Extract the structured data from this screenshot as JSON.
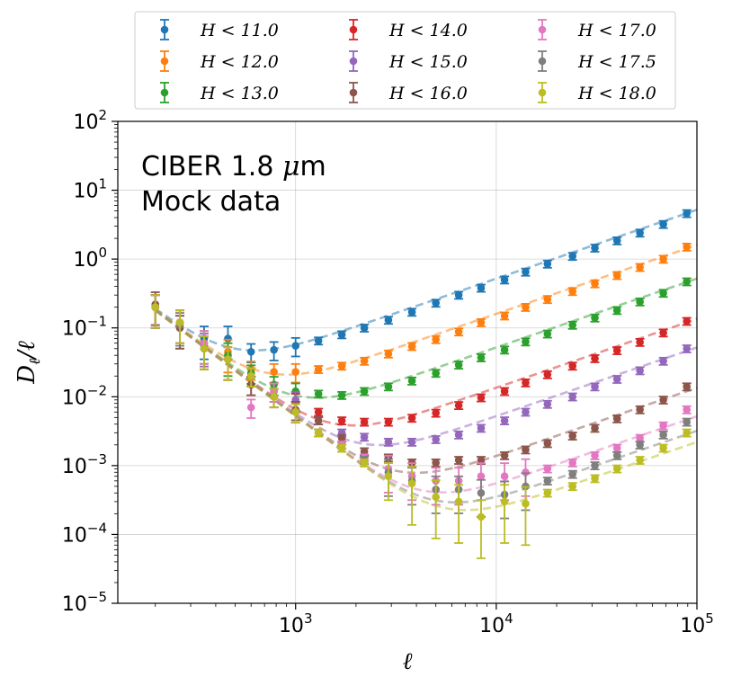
{
  "chart_data": {
    "type": "scatter",
    "title": "",
    "xlabel": "ℓ",
    "ylabel": "D_ℓ/ℓ",
    "xscale": "log",
    "yscale": "log",
    "xlim": [
      130,
      100000
    ],
    "ylim": [
      1e-05,
      100
    ],
    "grid": true,
    "x_ticks": [
      {
        "value": 1000,
        "base": "10",
        "exp": "3"
      },
      {
        "value": 10000,
        "base": "10",
        "exp": "4"
      },
      {
        "value": 100000,
        "base": "10",
        "exp": "5"
      }
    ],
    "y_ticks": [
      {
        "value": 1e-05,
        "base": "10",
        "exp": "−5"
      },
      {
        "value": 0.0001,
        "base": "10",
        "exp": "−4"
      },
      {
        "value": 0.001,
        "base": "10",
        "exp": "−3"
      },
      {
        "value": 0.01,
        "base": "10",
        "exp": "−2"
      },
      {
        "value": 0.1,
        "base": "10",
        "exp": "−1"
      },
      {
        "value": 1,
        "base": "10",
        "exp": "0"
      },
      {
        "value": 10,
        "base": "10",
        "exp": "1"
      },
      {
        "value": 100,
        "base": "10",
        "exp": "2"
      }
    ],
    "annotations": [
      "CIBER 1.8 μm",
      "Mock data"
    ],
    "legend_position": "top, outside",
    "x": [
      200,
      265,
      350,
      460,
      600,
      780,
      1000,
      1300,
      1700,
      2200,
      2900,
      3800,
      5000,
      6500,
      8400,
      11000,
      14000,
      18000,
      24000,
      31000,
      40000,
      52000,
      68000,
      89000
    ],
    "series": [
      {
        "name": "H < 11.0",
        "color": "#1f77b4",
        "white_noise": 5.2e-05,
        "clustering": 0.034,
        "slope": 1.0,
        "values": [
          0.2,
          0.12,
          0.07,
          0.07,
          0.045,
          0.048,
          0.055,
          0.065,
          0.08,
          0.1,
          0.13,
          0.17,
          0.23,
          0.3,
          0.38,
          0.5,
          0.65,
          0.85,
          1.1,
          1.45,
          1.85,
          2.4,
          3.2,
          4.6
        ]
      },
      {
        "name": "H < 12.0",
        "color": "#ff7f0e",
        "white_noise": 1.6e-05,
        "clustering": 0.024,
        "slope": 1.0,
        "values": [
          0.2,
          0.12,
          0.06,
          0.045,
          0.025,
          0.023,
          0.023,
          0.025,
          0.028,
          0.033,
          0.042,
          0.054,
          0.068,
          0.088,
          0.12,
          0.15,
          0.2,
          0.26,
          0.34,
          0.44,
          0.58,
          0.76,
          1.0,
          1.5
        ]
      },
      {
        "name": "H < 13.0",
        "color": "#2ca02c",
        "white_noise": 5.2e-06,
        "clustering": 0.024,
        "slope": 1.0,
        "values": [
          0.2,
          0.12,
          0.06,
          0.04,
          0.022,
          0.015,
          0.012,
          0.011,
          0.0105,
          0.012,
          0.014,
          0.017,
          0.022,
          0.029,
          0.037,
          0.048,
          0.063,
          0.082,
          0.11,
          0.14,
          0.18,
          0.24,
          0.32,
          0.47
        ]
      },
      {
        "name": "H < 14.0",
        "color": "#d62728",
        "white_noise": 1.35e-06,
        "clustering": 0.024,
        "slope": 1.0,
        "values": [
          0.2,
          0.1,
          0.05,
          0.035,
          0.015,
          0.01,
          0.0085,
          0.006,
          0.0045,
          0.0043,
          0.0043,
          0.0049,
          0.0058,
          0.0075,
          0.0097,
          0.012,
          0.016,
          0.021,
          0.028,
          0.036,
          0.047,
          0.062,
          0.085,
          0.125
        ]
      },
      {
        "name": "H < 15.0",
        "color": "#9467bd",
        "white_noise": 5.2e-07,
        "clustering": 0.024,
        "slope": 1.0,
        "values": [
          0.2,
          0.12,
          0.055,
          0.035,
          0.02,
          0.012,
          0.009,
          0.0045,
          0.003,
          0.0026,
          0.0022,
          0.0022,
          0.0024,
          0.0028,
          0.0035,
          0.0045,
          0.006,
          0.0078,
          0.01,
          0.014,
          0.018,
          0.024,
          0.033,
          0.05
        ]
      },
      {
        "name": "H < 16.0",
        "color": "#8c564b",
        "white_noise": 1.35e-07,
        "clustering": 0.024,
        "slope": 1.0,
        "values": [
          0.22,
          0.1,
          0.05,
          0.035,
          0.015,
          0.01,
          0.0065,
          0.0045,
          0.0025,
          0.0016,
          0.0013,
          0.0011,
          0.0011,
          0.0012,
          0.0012,
          0.0014,
          0.0017,
          0.0021,
          0.0027,
          0.0035,
          0.0048,
          0.0065,
          0.009,
          0.014
        ]
      },
      {
        "name": "H < 17.0",
        "color": "#e377c2",
        "white_noise": 5.2e-08,
        "clustering": 0.024,
        "slope": 1.0,
        "values": [
          0.2,
          0.12,
          0.06,
          0.035,
          0.007,
          0.012,
          0.006,
          0.003,
          0.002,
          0.0013,
          0.0009,
          0.0007,
          0.0006,
          0.0006,
          0.0007,
          0.0007,
          0.0008,
          0.0009,
          0.0011,
          0.0014,
          0.0018,
          0.0025,
          0.0038,
          0.0065
        ]
      },
      {
        "name": "H < 17.5",
        "color": "#7f7f7f",
        "white_noise": 3.2e-08,
        "clustering": 0.024,
        "slope": 1.0,
        "values": [
          0.2,
          0.11,
          0.05,
          0.035,
          0.02,
          0.01,
          0.006,
          0.003,
          0.0018,
          0.0012,
          0.0008,
          0.0006,
          0.00045,
          0.00045,
          0.0004,
          0.00038,
          0.0005,
          0.0006,
          0.00075,
          0.001,
          0.0014,
          0.002,
          0.0028,
          0.0043
        ]
      },
      {
        "name": "H < 18.0",
        "color": "#bcbd22",
        "white_noise": 2.2e-08,
        "clustering": 0.024,
        "slope": 1.0,
        "values": [
          0.2,
          0.12,
          0.05,
          0.035,
          0.02,
          0.01,
          0.006,
          0.003,
          0.0018,
          0.0011,
          0.0007,
          0.00055,
          0.00035,
          0.0003,
          0.00018,
          0.0003,
          0.00028,
          0.0004,
          0.0005,
          0.00065,
          0.0009,
          0.0012,
          0.0018,
          0.003
        ]
      }
    ]
  }
}
